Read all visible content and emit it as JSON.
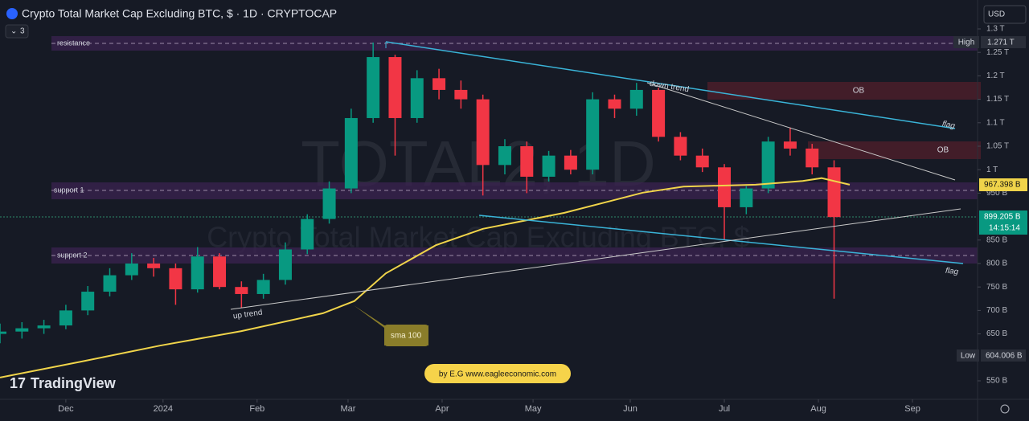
{
  "chart_data": {
    "type": "candlestick",
    "title": "Crypto Total Market Cap Excluding BTC, $ · 1D · CRYPTOCAP",
    "indicator_count": "3",
    "currency": "USD",
    "watermark": "TOTAL2, 1D",
    "watermark_subtitle": "Crypto Total Market Cap Excluding BTC, $",
    "brand": "TradingView",
    "xlim": [
      0,
      311.5
    ],
    "xticks": [
      {
        "value": 21,
        "label": "Dec"
      },
      {
        "value": 52,
        "label": "2024"
      },
      {
        "value": 82,
        "label": "Feb"
      },
      {
        "value": 111,
        "label": "Mar"
      },
      {
        "value": 141,
        "label": "Apr"
      },
      {
        "value": 170,
        "label": "May"
      },
      {
        "value": 201,
        "label": "Jun"
      },
      {
        "value": 231,
        "label": "Jul"
      },
      {
        "value": 261,
        "label": "Aug"
      },
      {
        "value": 291,
        "label": "Sep"
      }
    ],
    "ylim": [
      510.6,
      1313.7
    ],
    "yticks": [
      {
        "value": 550,
        "label": "550 B"
      },
      {
        "value": 650,
        "label": "650 B"
      },
      {
        "value": 700,
        "label": "700 B"
      },
      {
        "value": 750,
        "label": "750 B"
      },
      {
        "value": 800,
        "label": "800 B"
      },
      {
        "value": 850,
        "label": "850 B"
      },
      {
        "value": 950,
        "label": "950 B"
      },
      {
        "value": 1000,
        "label": "1 T"
      },
      {
        "value": 1050,
        "label": "1.05 T"
      },
      {
        "value": 1100,
        "label": "1.1 T"
      },
      {
        "value": 1150,
        "label": "1.15 T"
      },
      {
        "value": 1200,
        "label": "1.2 T"
      },
      {
        "value": 1250,
        "label": "1.25 T"
      },
      {
        "value": 1300,
        "label": "1.3 T"
      }
    ],
    "up_color": "#089981",
    "down_color": "#f23645",
    "x": [
      0,
      7,
      14,
      21,
      28,
      35,
      42,
      49,
      56,
      63,
      70,
      77,
      84,
      91,
      98,
      105,
      112,
      119,
      126,
      133,
      140,
      147,
      154,
      161,
      168,
      175,
      182,
      189,
      196,
      203,
      210,
      217,
      224,
      231,
      238,
      245,
      252,
      259,
      266
    ],
    "open": [
      650,
      655,
      662,
      668,
      700,
      740,
      775,
      800,
      790,
      745,
      815,
      750,
      735,
      765,
      830,
      895,
      960,
      1110,
      1240,
      1110,
      1195,
      1170,
      1150,
      1010,
      1050,
      985,
      1030,
      1000,
      1150,
      1130,
      1170,
      1070,
      1030,
      1005,
      920,
      960,
      1060,
      1045,
      1005
    ],
    "high": [
      672,
      675,
      680,
      712,
      752,
      790,
      822,
      812,
      800,
      835,
      822,
      762,
      778,
      845,
      905,
      975,
      1130,
      1271,
      1245,
      1212,
      1215,
      1190,
      1160,
      1065,
      1060,
      1040,
      1042,
      1165,
      1160,
      1185,
      1175,
      1080,
      1045,
      1012,
      965,
      1070,
      1090,
      1055,
      1020
    ],
    "low": [
      630,
      640,
      650,
      660,
      690,
      730,
      765,
      772,
      712,
      738,
      745,
      705,
      725,
      755,
      820,
      885,
      950,
      1100,
      1030,
      1100,
      1150,
      1130,
      945,
      990,
      950,
      975,
      990,
      990,
      1110,
      1115,
      1060,
      1020,
      995,
      850,
      905,
      950,
      1030,
      990,
      725
    ],
    "close": [
      655,
      662,
      668,
      700,
      740,
      775,
      800,
      790,
      745,
      815,
      750,
      735,
      765,
      830,
      895,
      960,
      1110,
      1240,
      1110,
      1195,
      1170,
      1150,
      1010,
      1050,
      985,
      1030,
      1000,
      1150,
      1130,
      1170,
      1070,
      1030,
      1005,
      920,
      960,
      1060,
      1045,
      1005,
      899
    ],
    "sma": {
      "name": "sma 100",
      "color": "#f0d44a",
      "x": [
        0,
        26,
        51,
        77,
        103,
        113,
        123,
        139,
        154,
        180,
        205,
        218,
        241,
        256,
        262,
        271
      ],
      "values": [
        557,
        591,
        625,
        656,
        694,
        720,
        779,
        839,
        874,
        908,
        951,
        964,
        968,
        976,
        982,
        968
      ]
    },
    "annotations": {
      "resistance": "resistance",
      "support_1": "support 1",
      "support_2": "support 2",
      "ob_1": "OB",
      "ob_2": "OB",
      "down_trend": "down trend",
      "up_trend": "up trend",
      "flag_1": "flag",
      "flag_2": "flag",
      "credit": "by E.G www.eagleeconomic.com"
    },
    "price_labels": {
      "high_tag": "High",
      "high_value": "1.271 T",
      "low_tag": "Low",
      "low_value": "604.006 B",
      "sma_value": "967.398 B",
      "last_value": "899.205 B",
      "countdown": "14:15:14"
    }
  }
}
